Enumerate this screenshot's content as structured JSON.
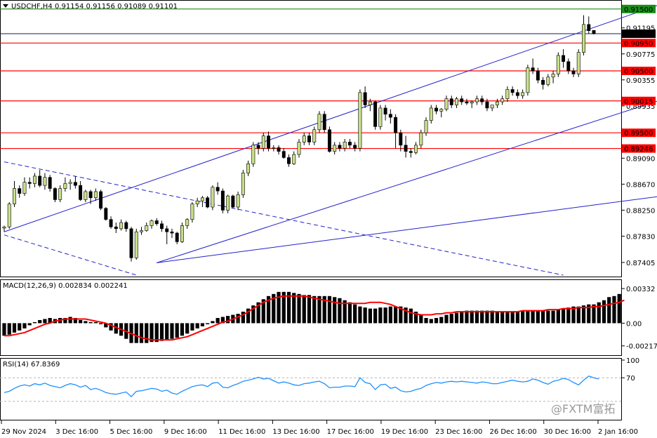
{
  "header": {
    "symbol": "USDCHF,H4",
    "ohlc": "0.91154 0.91156 0.91089 0.91101"
  },
  "chart_data": [
    {
      "type": "candlestick",
      "symbol": "USDCHF",
      "timeframe": "H4",
      "ylim": [
        0.872,
        0.916
      ],
      "y_ticks": [
        "0.91195",
        "0.90775",
        "0.90355",
        "0.89935",
        "0.89090",
        "0.88670",
        "0.88250",
        "0.87830",
        "0.87405"
      ],
      "current_price": "0.91101",
      "levels": [
        {
          "label": "0.91500",
          "value": 0.915,
          "color": "#1a8c1a"
        },
        {
          "label": "0.90950",
          "value": 0.9095,
          "color": "#ff0000"
        },
        {
          "label": "0.90500",
          "value": 0.905,
          "color": "#ff0000"
        },
        {
          "label": "0.90015",
          "value": 0.90015,
          "color": "#ff0000"
        },
        {
          "label": "0.89500",
          "value": 0.895,
          "color": "#ff0000"
        },
        {
          "label": "0.89246",
          "value": 0.89246,
          "color": "#ff0000"
        }
      ],
      "trendlines": [
        {
          "style": "solid",
          "color": "#2222cc",
          "points": [
            [
              0,
              0.879
            ],
            [
              130,
              0.916
            ]
          ]
        },
        {
          "style": "solid",
          "color": "#2222cc",
          "points": [
            [
              30,
              0.874
            ],
            [
              148,
              0.9053
            ]
          ]
        },
        {
          "style": "solid",
          "color": "#2222cc",
          "points": [
            [
              30,
              0.874
            ],
            [
              148,
              0.8868
            ]
          ]
        },
        {
          "style": "dashed",
          "color": "#2222cc",
          "points": [
            [
              0,
              0.8903
            ],
            [
              110,
              0.872
            ]
          ]
        },
        {
          "style": "dashed",
          "color": "#2222cc",
          "points": [
            [
              0,
              0.8785
            ],
            [
              26,
              0.872
            ]
          ]
        }
      ],
      "candle_colors": {
        "up": "#c8e08a",
        "down": "#000000"
      },
      "candles": [
        [
          0.8796,
          0.88,
          0.879,
          0.8798
        ],
        [
          0.8798,
          0.8838,
          0.8795,
          0.8835
        ],
        [
          0.8835,
          0.8872,
          0.883,
          0.886
        ],
        [
          0.886,
          0.8865,
          0.8845,
          0.8852
        ],
        [
          0.8852,
          0.8878,
          0.8848,
          0.887
        ],
        [
          0.887,
          0.8878,
          0.886,
          0.8868
        ],
        [
          0.8868,
          0.8885,
          0.8862,
          0.888
        ],
        [
          0.888,
          0.889,
          0.8862,
          0.8865
        ],
        [
          0.8865,
          0.8885,
          0.8858,
          0.8878
        ],
        [
          0.8878,
          0.8882,
          0.8855,
          0.886
        ],
        [
          0.886,
          0.8862,
          0.8838,
          0.8842
        ],
        [
          0.8842,
          0.8865,
          0.8838,
          0.886
        ],
        [
          0.886,
          0.8878,
          0.8855,
          0.8868
        ],
        [
          0.8868,
          0.8875,
          0.8858,
          0.887
        ],
        [
          0.887,
          0.888,
          0.886,
          0.8865
        ],
        [
          0.8865,
          0.8872,
          0.884,
          0.8842
        ],
        [
          0.8842,
          0.8858,
          0.8838,
          0.8855
        ],
        [
          0.8855,
          0.8858,
          0.8835,
          0.8845
        ],
        [
          0.8845,
          0.886,
          0.884,
          0.8855
        ],
        [
          0.8855,
          0.8858,
          0.8825,
          0.8828
        ],
        [
          0.8828,
          0.883,
          0.8808,
          0.881
        ],
        [
          0.881,
          0.8815,
          0.8795,
          0.8798
        ],
        [
          0.8798,
          0.8805,
          0.8788,
          0.8795
        ],
        [
          0.8795,
          0.881,
          0.8792,
          0.8805
        ],
        [
          0.8805,
          0.8808,
          0.879,
          0.8795
        ],
        [
          0.8795,
          0.8798,
          0.8742,
          0.8748
        ],
        [
          0.8748,
          0.8795,
          0.8745,
          0.879
        ],
        [
          0.879,
          0.8798,
          0.8785,
          0.8792
        ],
        [
          0.8792,
          0.8805,
          0.879,
          0.88
        ],
        [
          0.88,
          0.881,
          0.8795,
          0.8808
        ],
        [
          0.8808,
          0.8812,
          0.88,
          0.8803
        ],
        [
          0.8803,
          0.8808,
          0.879,
          0.8795
        ],
        [
          0.8795,
          0.88,
          0.877,
          0.879
        ],
        [
          0.879,
          0.8795,
          0.878,
          0.8788
        ],
        [
          0.8788,
          0.879,
          0.877,
          0.8774
        ],
        [
          0.8774,
          0.8805,
          0.8772,
          0.88
        ],
        [
          0.88,
          0.8812,
          0.8795,
          0.881
        ],
        [
          0.881,
          0.8838,
          0.8805,
          0.8835
        ],
        [
          0.8835,
          0.8845,
          0.883,
          0.884
        ],
        [
          0.884,
          0.8848,
          0.883,
          0.8845
        ],
        [
          0.8845,
          0.8848,
          0.8828,
          0.883
        ],
        [
          0.883,
          0.8865,
          0.8825,
          0.8862
        ],
        [
          0.8862,
          0.887,
          0.885,
          0.8856
        ],
        [
          0.8856,
          0.886,
          0.882,
          0.8825
        ],
        [
          0.8825,
          0.885,
          0.882,
          0.8848
        ],
        [
          0.8848,
          0.885,
          0.8828,
          0.883
        ],
        [
          0.883,
          0.8855,
          0.8825,
          0.885
        ],
        [
          0.885,
          0.889,
          0.8845,
          0.8885
        ],
        [
          0.8885,
          0.8905,
          0.888,
          0.89
        ],
        [
          0.89,
          0.8935,
          0.8895,
          0.893
        ],
        [
          0.893,
          0.8935,
          0.8915,
          0.8925
        ],
        [
          0.8925,
          0.895,
          0.892,
          0.8945
        ],
        [
          0.8945,
          0.8952,
          0.892,
          0.8925
        ],
        [
          0.8925,
          0.893,
          0.892,
          0.8926
        ],
        [
          0.8926,
          0.893,
          0.8915,
          0.892
        ],
        [
          0.892,
          0.8925,
          0.8908,
          0.891
        ],
        [
          0.891,
          0.8915,
          0.8895,
          0.89
        ],
        [
          0.89,
          0.892,
          0.8898,
          0.8915
        ],
        [
          0.8915,
          0.894,
          0.891,
          0.8935
        ],
        [
          0.8935,
          0.895,
          0.893,
          0.8945
        ],
        [
          0.8945,
          0.895,
          0.893,
          0.8935
        ],
        [
          0.8935,
          0.896,
          0.893,
          0.8955
        ],
        [
          0.8955,
          0.8985,
          0.895,
          0.898
        ],
        [
          0.898,
          0.8985,
          0.895,
          0.8955
        ],
        [
          0.8955,
          0.896,
          0.8918,
          0.892
        ],
        [
          0.892,
          0.8935,
          0.8915,
          0.893
        ],
        [
          0.893,
          0.8935,
          0.892,
          0.8925
        ],
        [
          0.8925,
          0.894,
          0.892,
          0.8935
        ],
        [
          0.8935,
          0.894,
          0.8925,
          0.893
        ],
        [
          0.893,
          0.8935,
          0.892,
          0.8925
        ],
        [
          0.8925,
          0.902,
          0.892,
          0.9015
        ],
        [
          0.9015,
          0.9025,
          0.899,
          0.8995
        ],
        [
          0.8995,
          0.9005,
          0.8985,
          0.9
        ],
        [
          0.9,
          0.9002,
          0.8955,
          0.896
        ],
        [
          0.896,
          0.8995,
          0.8955,
          0.899
        ],
        [
          0.899,
          0.8995,
          0.897,
          0.898
        ],
        [
          0.898,
          0.8988,
          0.8965,
          0.8975
        ],
        [
          0.8975,
          0.898,
          0.8925,
          0.895
        ],
        [
          0.895,
          0.8955,
          0.892,
          0.893
        ],
        [
          0.893,
          0.8945,
          0.891,
          0.892
        ],
        [
          0.892,
          0.8925,
          0.891,
          0.8918
        ],
        [
          0.8918,
          0.8935,
          0.8915,
          0.893
        ],
        [
          0.893,
          0.8955,
          0.8925,
          0.895
        ],
        [
          0.895,
          0.8975,
          0.8945,
          0.897
        ],
        [
          0.897,
          0.8995,
          0.8965,
          0.899
        ],
        [
          0.899,
          0.8995,
          0.898,
          0.8985
        ],
        [
          0.8985,
          0.899,
          0.8975,
          0.8988
        ],
        [
          0.8988,
          0.901,
          0.8985,
          0.9005
        ],
        [
          0.9005,
          0.901,
          0.899,
          0.8995
        ],
        [
          0.8995,
          0.9008,
          0.899,
          0.9005
        ],
        [
          0.9005,
          0.901,
          0.8995,
          0.9
        ],
        [
          0.9,
          0.9005,
          0.8995,
          0.8998
        ],
        [
          0.8998,
          0.9002,
          0.899,
          0.9
        ],
        [
          0.9,
          0.901,
          0.8995,
          0.9005
        ],
        [
          0.9005,
          0.901,
          0.8995,
          0.9
        ],
        [
          0.9,
          0.9005,
          0.8985,
          0.899
        ],
        [
          0.899,
          0.8995,
          0.8985,
          0.8995
        ],
        [
          0.8995,
          0.9005,
          0.899,
          0.9
        ],
        [
          0.9,
          0.901,
          0.8995,
          0.9005
        ],
        [
          0.9005,
          0.9025,
          0.9,
          0.902
        ],
        [
          0.902,
          0.9025,
          0.901,
          0.9015
        ],
        [
          0.9015,
          0.902,
          0.9005,
          0.901
        ],
        [
          0.901,
          0.902,
          0.9005,
          0.9015
        ],
        [
          0.9015,
          0.906,
          0.901,
          0.9055
        ],
        [
          0.9055,
          0.907,
          0.9045,
          0.905
        ],
        [
          0.905,
          0.9055,
          0.903,
          0.9035
        ],
        [
          0.9035,
          0.904,
          0.902,
          0.9028
        ],
        [
          0.9028,
          0.9045,
          0.9025,
          0.904
        ],
        [
          0.904,
          0.905,
          0.903,
          0.9045
        ],
        [
          0.9045,
          0.908,
          0.904,
          0.9075
        ],
        [
          0.9075,
          0.9085,
          0.9055,
          0.9065
        ],
        [
          0.9065,
          0.907,
          0.9045,
          0.905
        ],
        [
          0.905,
          0.9055,
          0.904,
          0.9045
        ],
        [
          0.9045,
          0.9085,
          0.904,
          0.908
        ],
        [
          0.908,
          0.914,
          0.9075,
          0.9125
        ],
        [
          0.9125,
          0.9138,
          0.911,
          0.9115
        ],
        [
          0.91154,
          0.91156,
          0.91089,
          0.91101
        ]
      ]
    },
    {
      "type": "macd",
      "label": "MACD(12,26,9) 0.002834 0.002241",
      "ylim": [
        -0.003,
        0.004
      ],
      "y_ticks": [
        "0.00332",
        "0.00",
        "-0.002174"
      ],
      "signal_color": "#ff0000",
      "histogram": [
        -0.0012,
        -0.0011,
        -0.0009,
        -0.0007,
        -0.0005,
        -0.0002,
        0.0001,
        0.0003,
        0.0004,
        0.0005,
        0.0004,
        0.0005,
        0.0005,
        0.0006,
        0.0005,
        0.0003,
        0.0002,
        0.0001,
        0.0001,
        -0.0001,
        -0.0004,
        -0.0007,
        -0.001,
        -0.0012,
        -0.0015,
        -0.0019,
        -0.0019,
        -0.0019,
        -0.0019,
        -0.0018,
        -0.0018,
        -0.0017,
        -0.0016,
        -0.0015,
        -0.0014,
        -0.0012,
        -0.001,
        -0.0007,
        -0.0005,
        -0.0003,
        -0.0001,
        0.0002,
        0.0005,
        0.0006,
        0.0007,
        0.0008,
        0.0009,
        0.0011,
        0.0014,
        0.0017,
        0.002,
        0.0023,
        0.0026,
        0.0028,
        0.003,
        0.003,
        0.003,
        0.0029,
        0.0028,
        0.0027,
        0.0027,
        0.0026,
        0.0026,
        0.0026,
        0.0026,
        0.0025,
        0.0024,
        0.0022,
        0.002,
        0.0018,
        0.0016,
        0.0015,
        0.0014,
        0.0014,
        0.0015,
        0.0015,
        0.0016,
        0.0016,
        0.0016,
        0.0015,
        0.0014,
        0.0011,
        0.0008,
        0.0005,
        0.0004,
        0.0005,
        0.0006,
        0.0008,
        0.0009,
        0.001,
        0.0011,
        0.0012,
        0.0012,
        0.0012,
        0.0012,
        0.0012,
        0.0012,
        0.0011,
        0.0011,
        0.0011,
        0.0011,
        0.0011,
        0.0012,
        0.0012,
        0.0012,
        0.0012,
        0.0012,
        0.0012,
        0.0012,
        0.0013,
        0.0014,
        0.0015,
        0.0016,
        0.0016,
        0.0017,
        0.0018,
        0.0018,
        0.002,
        0.0022,
        0.0025,
        0.0026,
        0.0028
      ],
      "signal": [
        -0.0012,
        -0.0012,
        -0.0011,
        -0.001,
        -0.0009,
        -0.0007,
        -0.0005,
        -0.0003,
        -0.0001,
        0.0,
        0.0002,
        0.0003,
        0.0004,
        0.0004,
        0.0004,
        0.0004,
        0.0004,
        0.0003,
        0.0002,
        0.0001,
        0.0,
        -0.0002,
        -0.0004,
        -0.0006,
        -0.0008,
        -0.001,
        -0.0012,
        -0.0014,
        -0.0015,
        -0.0016,
        -0.0016,
        -0.0016,
        -0.0016,
        -0.0016,
        -0.0015,
        -0.0014,
        -0.0013,
        -0.0011,
        -0.0009,
        -0.0007,
        -0.0005,
        -0.0003,
        -0.0001,
        0.0001,
        0.0002,
        0.0004,
        0.0006,
        0.0008,
        0.0011,
        0.0014,
        0.0017,
        0.002,
        0.0022,
        0.0024,
        0.0025,
        0.0026,
        0.0026,
        0.0026,
        0.0026,
        0.0026,
        0.0025,
        0.0024,
        0.0023,
        0.0022,
        0.0021,
        0.002,
        0.0019,
        0.0019,
        0.0019,
        0.0019,
        0.0019,
        0.0019,
        0.002,
        0.002,
        0.002,
        0.0019,
        0.0018,
        0.0016,
        0.0014,
        0.0012,
        0.001,
        0.0009,
        0.0008,
        0.0008,
        0.0008,
        0.0009,
        0.0009,
        0.001,
        0.001,
        0.0011,
        0.0011,
        0.0011,
        0.0011,
        0.0011,
        0.0011,
        0.0011,
        0.0011,
        0.0011,
        0.0011,
        0.0011,
        0.0011,
        0.0011,
        0.0012,
        0.0012,
        0.0012,
        0.0012,
        0.0012,
        0.0013,
        0.0013,
        0.0013,
        0.0014,
        0.0014,
        0.0014,
        0.0015,
        0.0015,
        0.0015,
        0.0016,
        0.0016,
        0.0017,
        0.0018,
        0.0019,
        0.002,
        0.0022
      ]
    },
    {
      "type": "line",
      "label": "RSI(14) 67.8369",
      "ylim": [
        0,
        100
      ],
      "y_ticks": [
        "100",
        "70"
      ],
      "levels": [
        70,
        30
      ],
      "series_color": "#1e90ff",
      "values": [
        45,
        47,
        52,
        56,
        58,
        56,
        60,
        58,
        61,
        57,
        55,
        53,
        57,
        60,
        58,
        54,
        57,
        50,
        52,
        49,
        45,
        43,
        42,
        44,
        46,
        38,
        47,
        48,
        50,
        52,
        51,
        47,
        49,
        44,
        42,
        47,
        51,
        55,
        57,
        58,
        55,
        61,
        62,
        54,
        53,
        57,
        60,
        64,
        66,
        68,
        71,
        68,
        69,
        65,
        61,
        63,
        61,
        58,
        57,
        60,
        61,
        63,
        64,
        60,
        53,
        54,
        54,
        56,
        56,
        55,
        70,
        62,
        60,
        50,
        58,
        59,
        52,
        54,
        48,
        46,
        47,
        50,
        52,
        57,
        60,
        62,
        61,
        63,
        64,
        63,
        64,
        63,
        62,
        61,
        63,
        62,
        60,
        60,
        62,
        64,
        66,
        64,
        63,
        64,
        68,
        66,
        62,
        59,
        64,
        66,
        69,
        67,
        62,
        58,
        66,
        73,
        70,
        68
      ]
    }
  ],
  "x_labels": [
    "29 Nov 2024",
    "3 Dec 16:00",
    "5 Dec 16:00",
    "9 Dec 16:00",
    "11 Dec 16:00",
    "13 Dec 16:00",
    "17 Dec 16:00",
    "19 Dec 16:00",
    "23 Dec 16:00",
    "26 Dec 16:00",
    "30 Dec 16:00",
    "2 Jan 16:00"
  ],
  "watermark": "@FXTM富拓"
}
